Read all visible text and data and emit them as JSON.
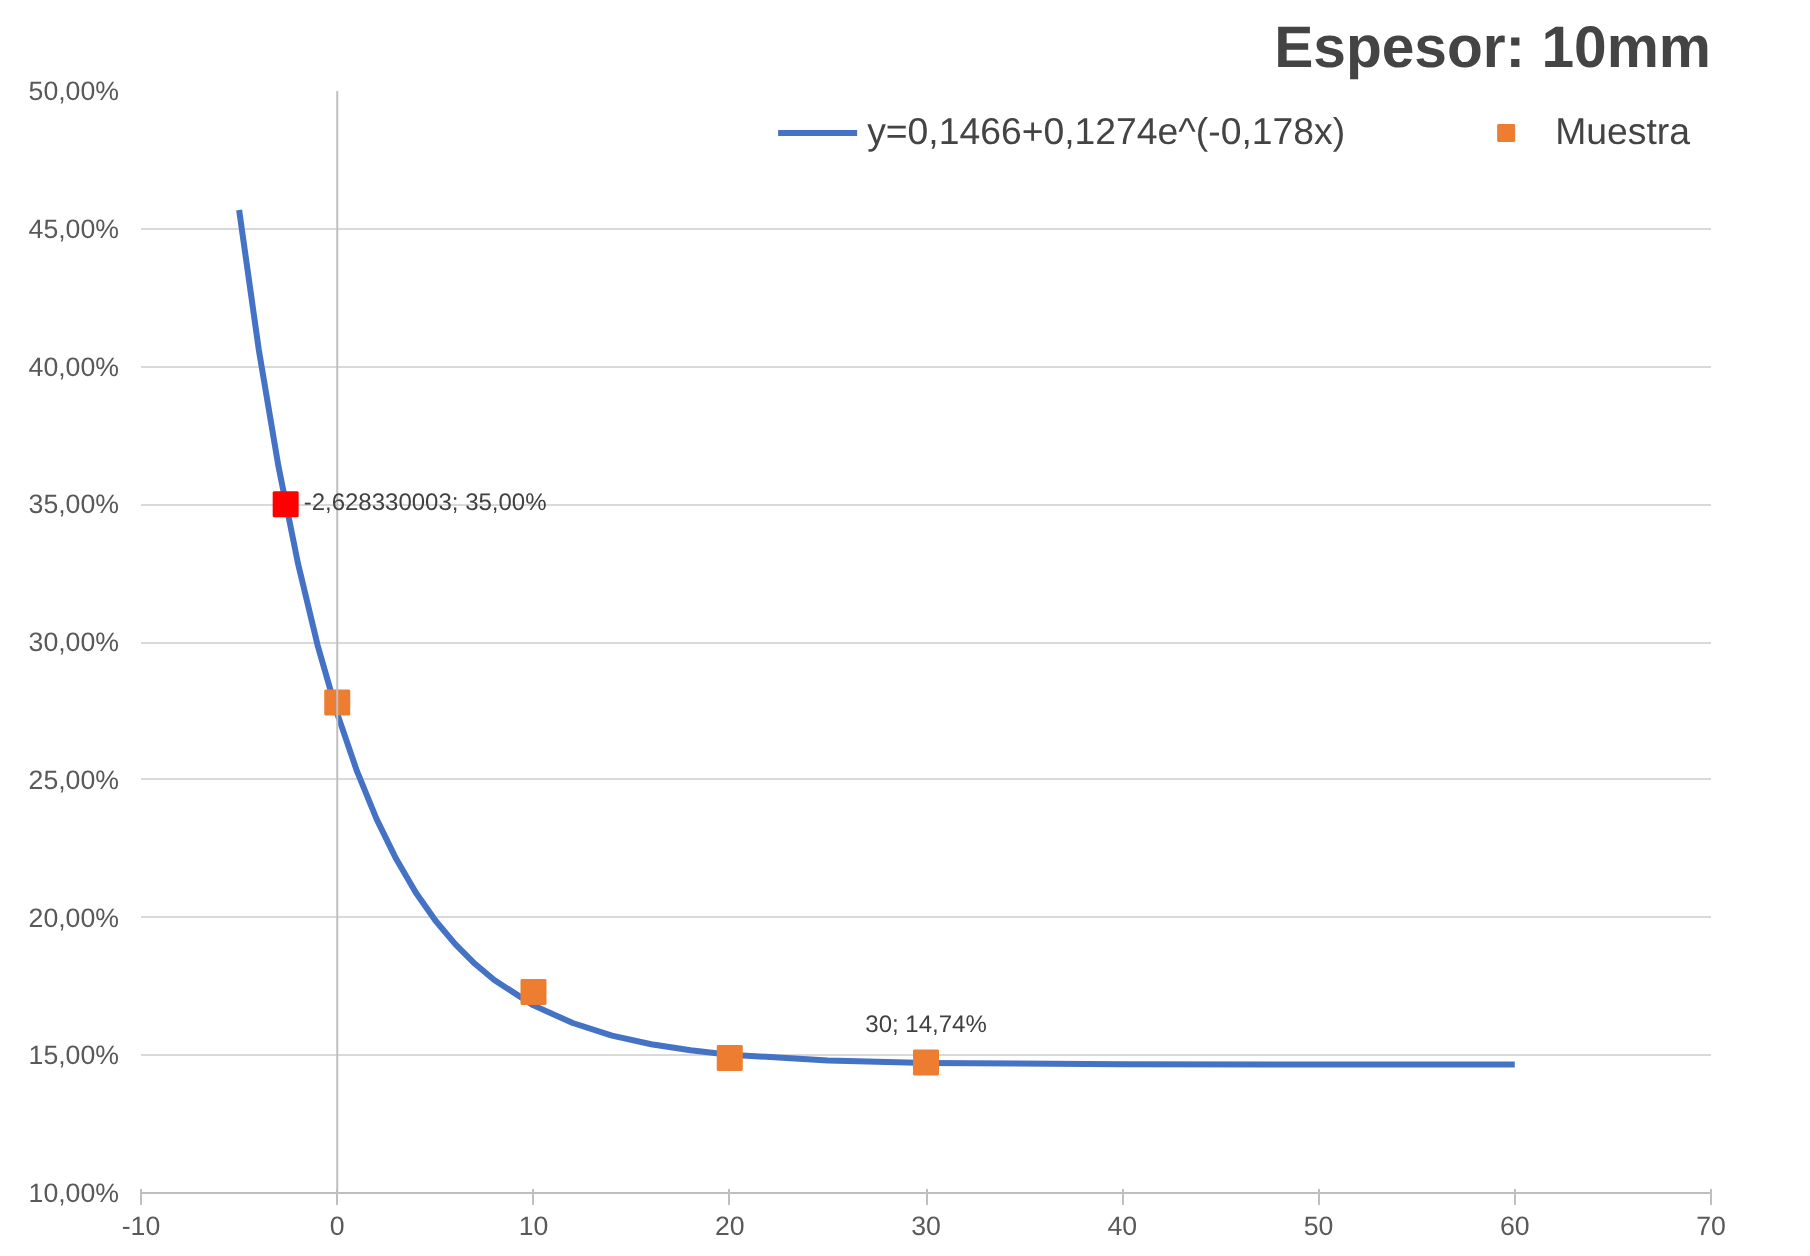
{
  "chart_data": {
    "type": "line",
    "title": "Espesor: 10mm",
    "xlim": [
      -10,
      70
    ],
    "xticks": [
      -10,
      0,
      10,
      20,
      30,
      40,
      50,
      60,
      70
    ],
    "ylim": [
      10,
      50
    ],
    "yticks": [
      {
        "value": 10,
        "label": "10,00%"
      },
      {
        "value": 15,
        "label": "15,00%"
      },
      {
        "value": 20,
        "label": "20,00%"
      },
      {
        "value": 25,
        "label": "25,00%"
      },
      {
        "value": 30,
        "label": "30,00%"
      },
      {
        "value": 35,
        "label": "35,00%"
      },
      {
        "value": 40,
        "label": "40,00%"
      },
      {
        "value": 45,
        "label": "45,00%"
      },
      {
        "value": 50,
        "label": "50,00%"
      }
    ],
    "grid": "y",
    "legend": "top right",
    "ref_lines": [
      {
        "axis": "x",
        "value": 0,
        "color": "#bfbfbf"
      }
    ],
    "series": [
      {
        "name": "y=0,1466+0,1274e^(-0,178x)",
        "color": "#4472c4",
        "marker": "none",
        "x": [
          -5,
          -4,
          -3,
          -2,
          -1,
          0,
          1,
          2,
          3,
          4,
          5,
          6,
          7,
          8,
          10,
          12,
          14,
          16,
          18,
          20,
          25,
          30,
          40,
          50,
          60
        ],
        "values": [
          45.68,
          40.62,
          36.39,
          32.85,
          29.88,
          27.4,
          25.32,
          23.58,
          22.13,
          20.91,
          19.89,
          19.04,
          18.33,
          17.73,
          16.81,
          16.17,
          15.71,
          15.4,
          15.18,
          15.02,
          14.81,
          14.72,
          14.67,
          14.66,
          14.66
        ]
      },
      {
        "name": "Muestra",
        "type": "scatter",
        "color": "#ed7d31",
        "marker": "square",
        "x": [
          0,
          10,
          20,
          30
        ],
        "values": [
          27.8,
          17.3,
          14.9,
          14.74
        ]
      },
      {
        "type": "scatter",
        "color": "#ff0000",
        "marker": "square",
        "x": [
          -2.628330003
        ],
        "values": [
          35.0
        ]
      }
    ],
    "annotations": [
      {
        "text": "-2,628330003; 35,00%",
        "x": -2.628330003,
        "y": 35.0
      },
      {
        "text": "30; 14,74%",
        "x": 30,
        "y": 14.74
      }
    ]
  }
}
